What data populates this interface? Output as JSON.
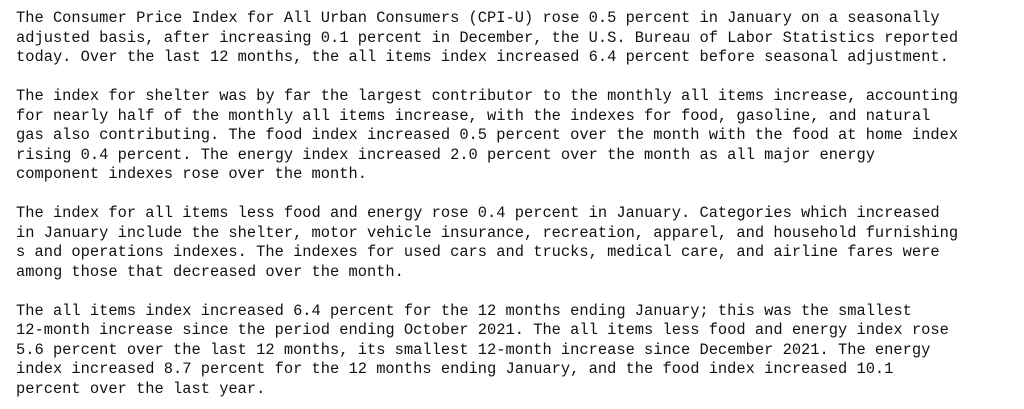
{
  "document": {
    "paragraphs": [
      {
        "lines": [
          "The Consumer Price Index for All Urban Consumers (CPI-U) rose 0.5 percent in January on a seasonally",
          "adjusted basis, after increasing 0.1 percent in December, the U.S. Bureau of Labor Statistics reported",
          "today. Over the last 12 months, the all items index increased 6.4 percent before seasonal adjustment."
        ]
      },
      {
        "lines": [
          "The index for shelter was by far the largest contributor to the monthly all items increase, accounting",
          "for nearly half of the monthly all items increase, with the indexes for food, gasoline, and natural",
          "gas also contributing. The food index increased 0.5 percent over the month with the food at home index",
          "rising 0.4 percent. The energy index increased 2.0 percent over the month as all major energy",
          "component indexes rose over the month."
        ]
      },
      {
        "lines": [
          "The index for all items less food and energy rose 0.4 percent in January. Categories which increased",
          "in January include the shelter, motor vehicle insurance, recreation, apparel, and household furnishing",
          "s and operations indexes. The indexes for used cars and trucks, medical care, and airline fares were",
          "among those that decreased over the month."
        ]
      },
      {
        "lines": [
          "The all items index increased 6.4 percent for the 12 months ending January; this was the smallest",
          "12-month increase since the period ending October 2021. The all items less food and energy index rose",
          "5.6 percent over the last 12 months, its smallest 12-month increase since December 2021. The energy",
          "index increased 8.7 percent for the 12 months ending January, and the food index increased 10.1",
          "percent over the last year."
        ]
      }
    ]
  }
}
